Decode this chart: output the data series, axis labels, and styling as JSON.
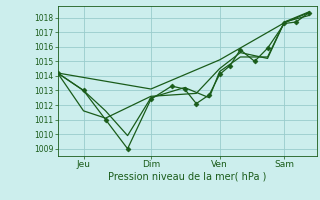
{
  "background_color": "#cceeed",
  "plot_bg_color": "#cceeed",
  "grid_color": "#99cccc",
  "line_color": "#1a5c1a",
  "marker_color": "#1a5c1a",
  "xlabel": "Pression niveau de la mer( hPa )",
  "ylim": [
    1008.5,
    1018.8
  ],
  "yticks": [
    1009,
    1010,
    1011,
    1012,
    1013,
    1014,
    1015,
    1016,
    1017,
    1018
  ],
  "xtick_labels": [
    "Jeu",
    "Dim",
    "Ven",
    "Sam"
  ],
  "xtick_positions": [
    0.1,
    0.36,
    0.625,
    0.875
  ],
  "series": [
    {
      "x": [
        0.0,
        0.1,
        0.185,
        0.27,
        0.36,
        0.44,
        0.49,
        0.535,
        0.585,
        0.625,
        0.665,
        0.705,
        0.76,
        0.81,
        0.875,
        0.92,
        0.97
      ],
      "y": [
        1014.2,
        1013.0,
        1011.0,
        1009.0,
        1012.4,
        1013.3,
        1013.1,
        1012.1,
        1012.7,
        1014.1,
        1014.7,
        1015.8,
        1015.0,
        1015.9,
        1017.6,
        1017.7,
        1018.35
      ],
      "with_markers": true
    },
    {
      "x": [
        0.0,
        0.1,
        0.185,
        0.27,
        0.36,
        0.49,
        0.585,
        0.625,
        0.705,
        0.81,
        0.875,
        0.97
      ],
      "y": [
        1014.2,
        1013.0,
        1011.6,
        1009.9,
        1012.5,
        1013.2,
        1012.5,
        1014.3,
        1015.3,
        1015.3,
        1017.7,
        1018.4
      ],
      "with_markers": false
    },
    {
      "x": [
        0.0,
        0.1,
        0.185,
        0.36,
        0.535,
        0.625,
        0.705,
        0.81,
        0.875,
        0.97
      ],
      "y": [
        1014.2,
        1011.6,
        1011.1,
        1012.6,
        1012.8,
        1014.5,
        1015.6,
        1015.2,
        1017.7,
        1018.15
      ],
      "with_markers": false
    },
    {
      "x": [
        0.0,
        0.36,
        0.625,
        0.875,
        0.97
      ],
      "y": [
        1014.2,
        1013.1,
        1015.1,
        1017.65,
        1018.35
      ],
      "with_markers": false
    }
  ]
}
